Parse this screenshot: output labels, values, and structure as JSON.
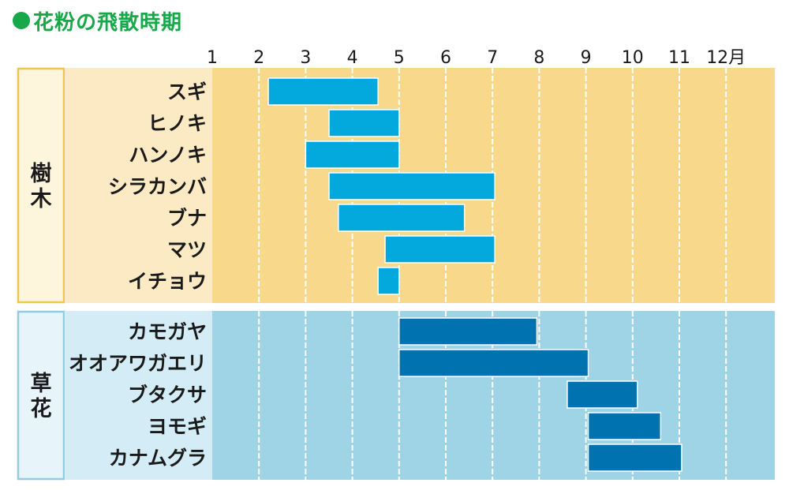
{
  "title": "花粉の飛散時期",
  "chart_data": {
    "type": "bar",
    "title": "花粉の飛散時期",
    "x_ticks": [
      "1",
      "2",
      "3",
      "4",
      "5",
      "6",
      "7",
      "8",
      "9",
      "10",
      "11",
      "12月"
    ],
    "x_unit": "月",
    "xlim": [
      1,
      12.85
    ],
    "colors": {
      "tree_band": "#f8d88a",
      "tree_label_band": "#fbeac3",
      "tree_box": "#fdf6dd",
      "tree_box_border": "#f3c64b",
      "tree_bar": "#03a9dd",
      "grass_band": "#9fd3e6",
      "grass_label_band": "#d3ecf6",
      "grass_box": "#e7f4fa",
      "grass_box_border": "#8fcde3",
      "grass_bar": "#0072b0",
      "title": "#17a84a"
    },
    "groups": [
      {
        "name": "樹木",
        "items": [
          {
            "name": "スギ",
            "start": 2.2,
            "end": 4.55
          },
          {
            "name": "ヒノキ",
            "start": 3.5,
            "end": 5.0
          },
          {
            "name": "ハンノキ",
            "start": 3.0,
            "end": 5.0
          },
          {
            "name": "シラカンバ",
            "start": 3.5,
            "end": 7.05
          },
          {
            "name": "ブナ",
            "start": 3.7,
            "end": 6.4
          },
          {
            "name": "マツ",
            "start": 4.7,
            "end": 7.05
          },
          {
            "name": "イチョウ",
            "start": 4.55,
            "end": 5.0
          }
        ]
      },
      {
        "name": "草花",
        "items": [
          {
            "name": "カモガヤ",
            "start": 5.0,
            "end": 7.95
          },
          {
            "name": "オオアワガエリ",
            "start": 5.0,
            "end": 9.05
          },
          {
            "name": "ブタクサ",
            "start": 8.6,
            "end": 10.1
          },
          {
            "name": "ヨモギ",
            "start": 9.05,
            "end": 10.6
          },
          {
            "name": "カナムグラ",
            "start": 9.05,
            "end": 11.05
          }
        ]
      }
    ]
  }
}
